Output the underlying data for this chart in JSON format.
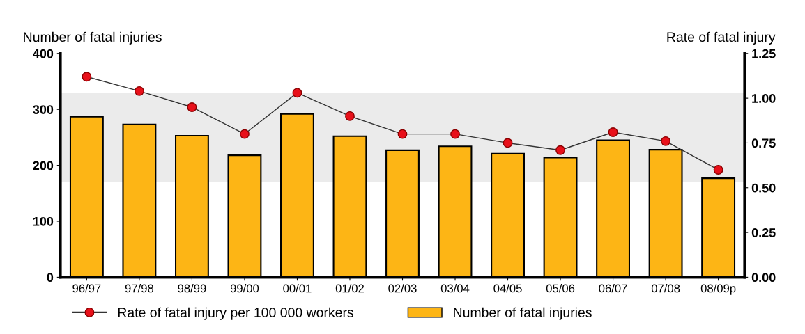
{
  "chart_data": {
    "type": "bar",
    "ylabel": "Number of fatal injuries",
    "y2label": "Rate of fatal injury",
    "categories": [
      "96/97",
      "97/98",
      "98/99",
      "99/00",
      "00/01",
      "01/02",
      "02/03",
      "03/04",
      "04/05",
      "05/06",
      "06/07",
      "07/08",
      "08/09p"
    ],
    "series": [
      {
        "name": "Rate of fatal injury per 100 000 workers",
        "type": "line",
        "axis": "y2",
        "color": "#e8101a",
        "marker": "circle",
        "values": [
          1.12,
          1.04,
          0.95,
          0.8,
          1.03,
          0.9,
          0.8,
          0.8,
          0.75,
          0.71,
          0.81,
          0.76,
          0.6
        ]
      },
      {
        "name": "Number of fatal injuries",
        "color": "#fdb515",
        "values": [
          287,
          273,
          253,
          218,
          292,
          252,
          227,
          234,
          221,
          214,
          245,
          228,
          177
        ]
      }
    ],
    "ylim": [
      0,
      400
    ],
    "yticks": [
      0,
      100,
      200,
      300,
      400
    ],
    "y2lim": [
      0,
      1.25
    ],
    "y2ticks": [
      {
        "value": 0,
        "label": "0.00"
      },
      {
        "value": 0.25,
        "label": "0.25"
      },
      {
        "value": 0.5,
        "label": "0.50"
      },
      {
        "value": 0.75,
        "label": "0.75"
      },
      {
        "value": 1,
        "label": "1.00"
      },
      {
        "value": 1.25,
        "label": "1.25"
      }
    ],
    "bands": [
      {
        "axis": "y",
        "from": 170,
        "to": 330,
        "color": "#ebebeb"
      }
    ],
    "grid": false,
    "legend": "bottom"
  }
}
